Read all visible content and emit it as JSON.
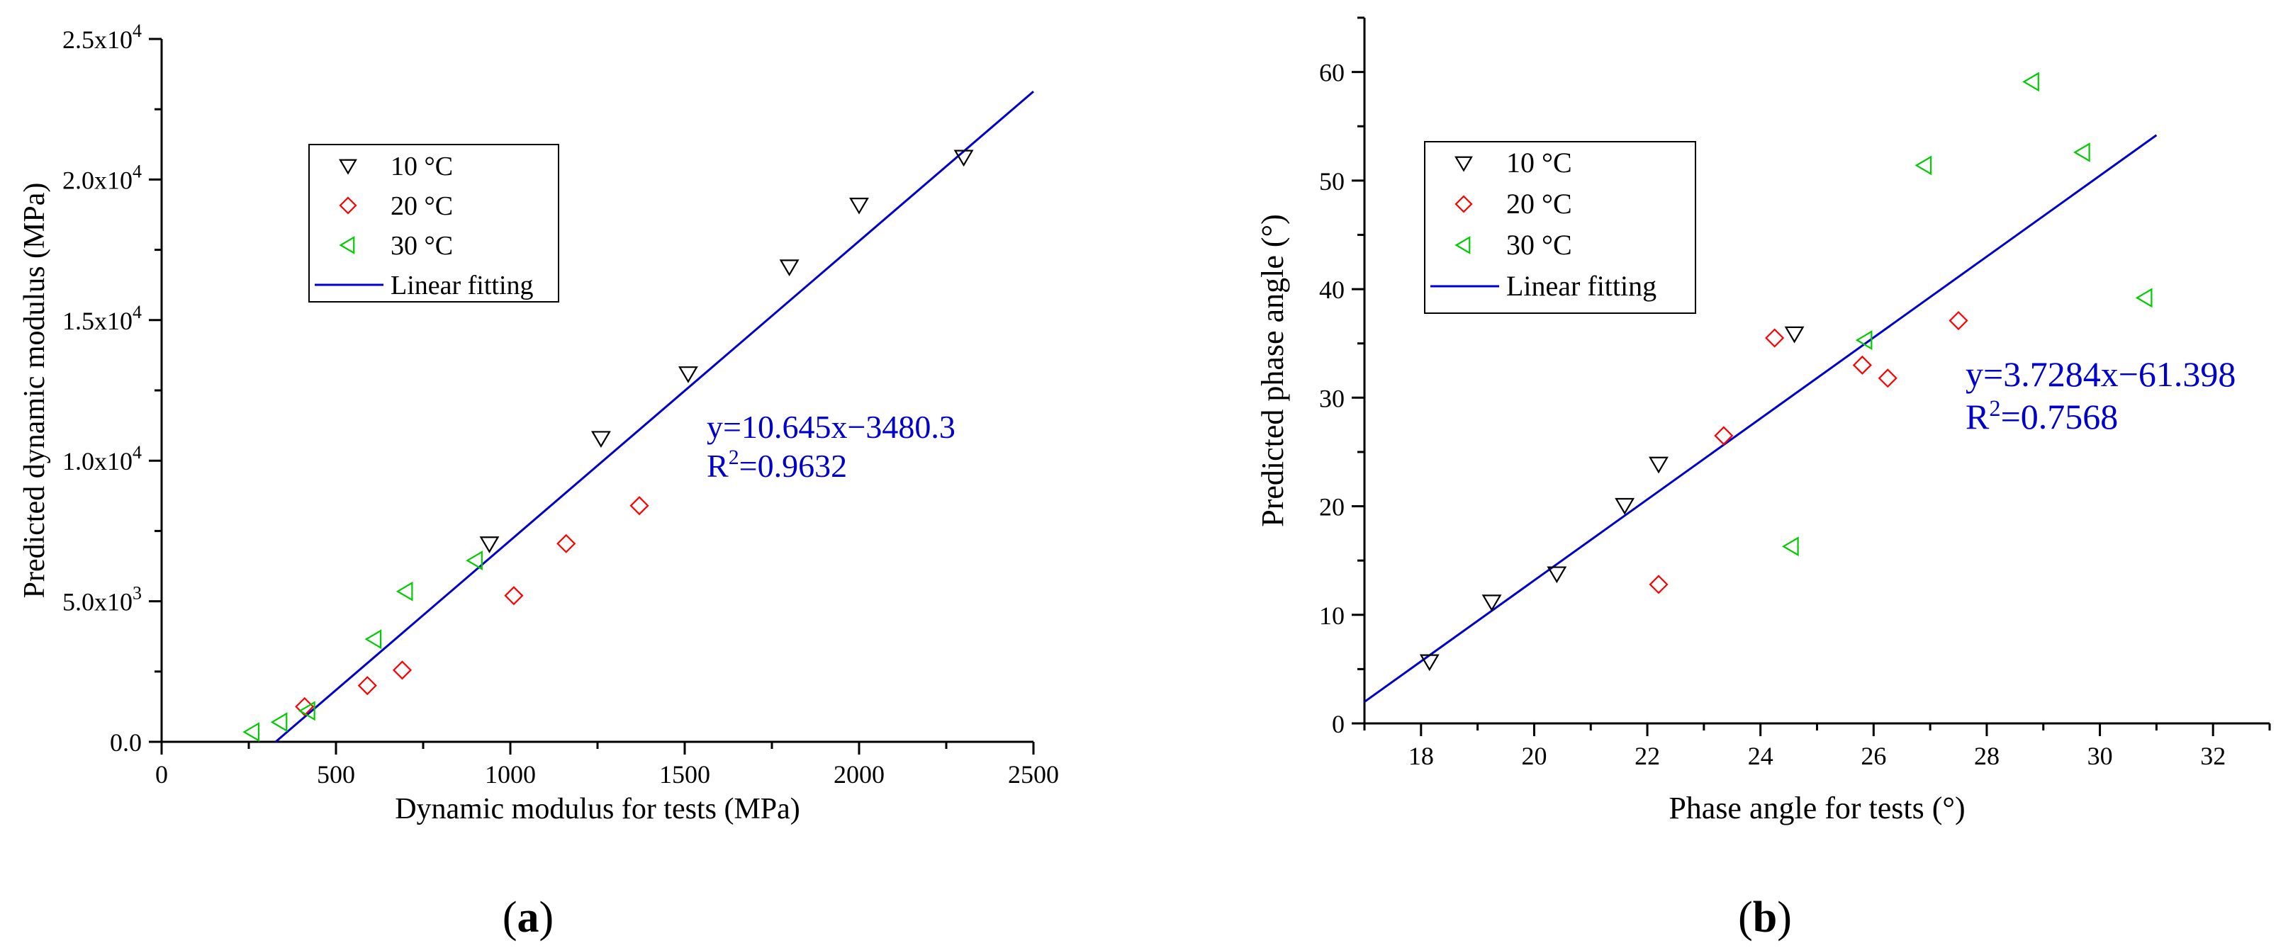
{
  "figure": {
    "panel_a_caption": "a",
    "panel_b_caption": "b"
  },
  "chart_data": [
    {
      "type": "scatter",
      "panel": "a",
      "title": "",
      "xlabel": "Dynamic modulus for tests (MPa)",
      "ylabel": "Predicted dynamic modulus (MPa)",
      "xlim": [
        0,
        2500
      ],
      "ylim": [
        0,
        25000
      ],
      "x_ticks": [
        0,
        500,
        1000,
        1500,
        2000,
        2500
      ],
      "x_tick_labels": [
        "0",
        "500",
        "1000",
        "1500",
        "2000",
        "2500"
      ],
      "y_ticks": [
        0,
        5000,
        10000,
        15000,
        20000,
        25000
      ],
      "y_tick_labels": [
        {
          "mant": "0.0",
          "exp": ""
        },
        {
          "mant": "5.0x10",
          "exp": "3"
        },
        {
          "mant": "1.0x10",
          "exp": "4"
        },
        {
          "mant": "1.5x10",
          "exp": "4"
        },
        {
          "mant": "2.0x10",
          "exp": "4"
        },
        {
          "mant": "2.5x10",
          "exp": "4"
        }
      ],
      "legend_position": "upper-left",
      "series": [
        {
          "name": "10 °C",
          "marker": "triangle-down",
          "color": "#000000",
          "points": [
            [
              940,
              7050
            ],
            [
              1260,
              10800
            ],
            [
              1510,
              13100
            ],
            [
              1800,
              16900
            ],
            [
              2000,
              19100
            ],
            [
              2300,
              20800
            ]
          ]
        },
        {
          "name": "20 °C",
          "marker": "diamond",
          "color": "#ff0000",
          "points": [
            [
              410,
              1250
            ],
            [
              590,
              2000
            ],
            [
              690,
              2550
            ],
            [
              1010,
              5200
            ],
            [
              1160,
              7050
            ],
            [
              1370,
              8400
            ]
          ]
        },
        {
          "name": "30 °C",
          "marker": "triangle-left",
          "color": "#00cc00",
          "points": [
            [
              260,
              350
            ],
            [
              340,
              700
            ],
            [
              420,
              1100
            ],
            [
              610,
              3650
            ],
            [
              700,
              5350
            ],
            [
              900,
              6450
            ]
          ]
        }
      ],
      "fit": {
        "name": "Linear fitting",
        "slope": 10.645,
        "intercept": -3480.3,
        "x_range": [
          327,
          2500
        ],
        "color": "#0000cc"
      },
      "equation_text": "y=10.645x−3480.3",
      "r2_label": "R",
      "r2_sup": "2",
      "r2_value": "=0.9632"
    },
    {
      "type": "scatter",
      "panel": "b",
      "title": "",
      "xlabel": "Phase angle for tests (°)",
      "ylabel": "Predicted phase angle (°)",
      "xlim": [
        17,
        33
      ],
      "ylim": [
        0,
        65
      ],
      "x_ticks": [
        18,
        20,
        22,
        24,
        26,
        28,
        30,
        32
      ],
      "x_tick_labels": [
        "18",
        "20",
        "22",
        "24",
        "26",
        "28",
        "30",
        "32"
      ],
      "y_ticks": [
        0,
        10,
        20,
        30,
        40,
        50,
        60
      ],
      "y_tick_labels": [
        "0",
        "10",
        "20",
        "30",
        "40",
        "50",
        "60"
      ],
      "legend_position": "upper-left",
      "series": [
        {
          "name": "10 °C",
          "marker": "triangle-down",
          "color": "#000000",
          "points": [
            [
              18.15,
              5.7
            ],
            [
              19.25,
              11.2
            ],
            [
              20.4,
              13.8
            ],
            [
              21.6,
              20.1
            ],
            [
              22.2,
              23.9
            ],
            [
              24.6,
              35.9
            ]
          ]
        },
        {
          "name": "20 °C",
          "marker": "diamond",
          "color": "#ff0000",
          "points": [
            [
              22.2,
              12.8
            ],
            [
              23.35,
              26.5
            ],
            [
              24.25,
              35.5
            ],
            [
              25.8,
              33.0
            ],
            [
              26.25,
              31.8
            ],
            [
              27.5,
              37.1
            ]
          ]
        },
        {
          "name": "30 °C",
          "marker": "triangle-left",
          "color": "#00cc00",
          "points": [
            [
              24.55,
              16.3
            ],
            [
              25.85,
              35.3
            ],
            [
              26.9,
              51.4
            ],
            [
              28.8,
              59.1
            ],
            [
              29.7,
              52.6
            ],
            [
              30.8,
              39.2
            ]
          ]
        }
      ],
      "fit": {
        "name": "Linear fitting",
        "slope": 3.7284,
        "intercept": -61.398,
        "x_range": [
          17,
          31
        ],
        "color": "#0000cc"
      },
      "equation_text": "y=3.7284x−61.398",
      "r2_label": "R",
      "r2_sup": "2",
      "r2_value": "=0.7568"
    }
  ]
}
